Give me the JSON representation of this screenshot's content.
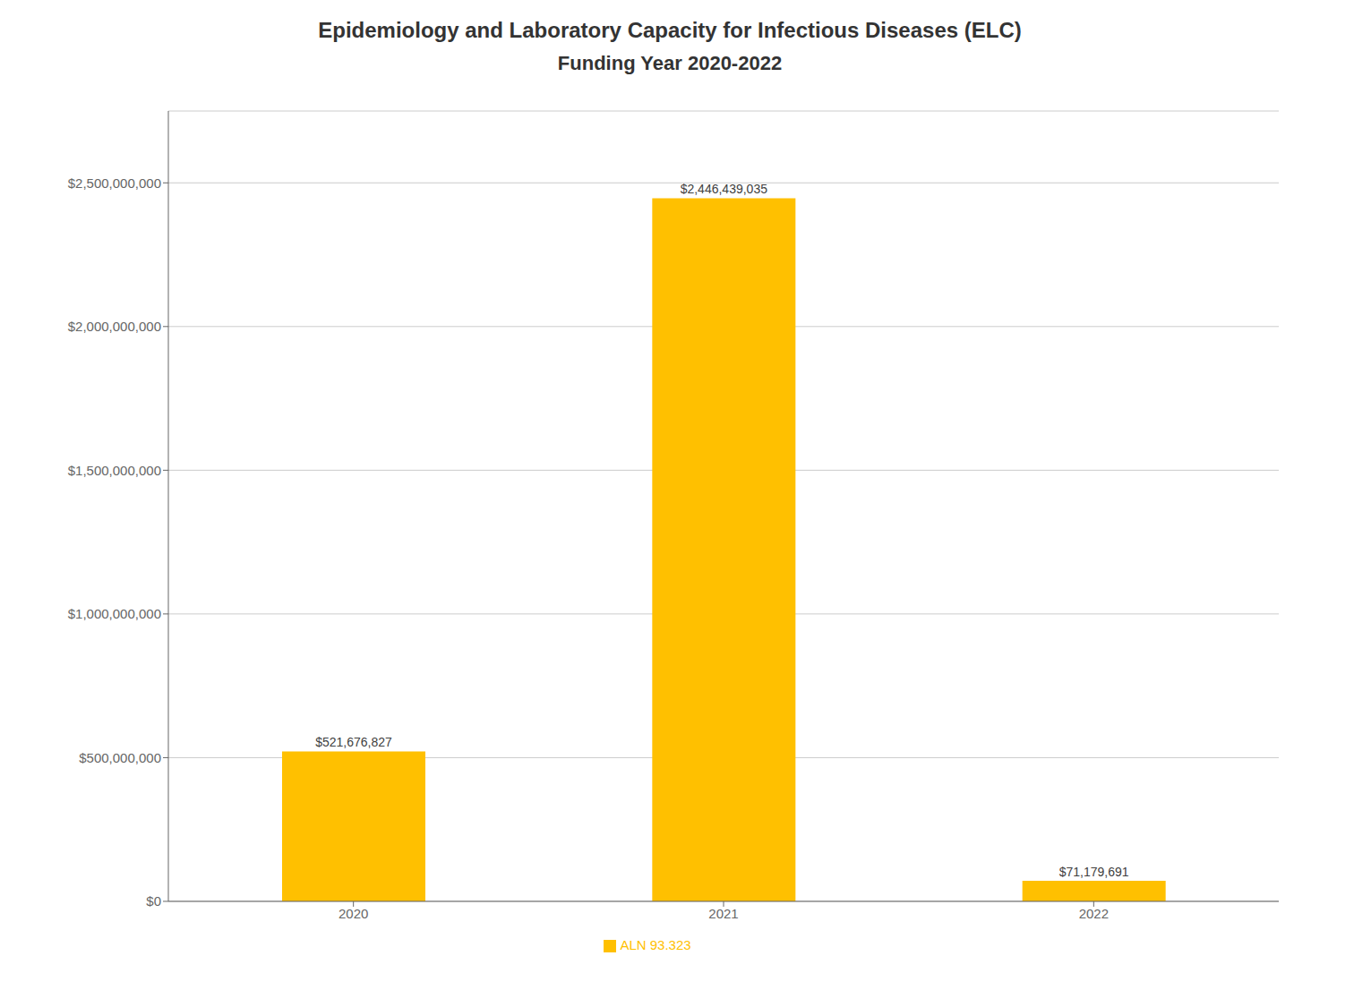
{
  "chart_data": {
    "type": "bar",
    "title": "Epidemiology and Laboratory Capacity for Infectious Diseases (ELC)",
    "subtitle": "Funding Year 2020-2022",
    "categories": [
      "2020",
      "2021",
      "2022"
    ],
    "series": [
      {
        "name": "ALN 93.323",
        "color": "#FFC000",
        "values": [
          521676827,
          2446439035,
          71179691
        ],
        "value_labels": [
          "$521,676,827",
          "$2,446,439,035",
          "$71,179,691"
        ]
      }
    ],
    "ylim": [
      0,
      2750000000
    ],
    "yticks": [
      {
        "value": 0,
        "label": "$0"
      },
      {
        "value": 500000000,
        "label": "$500,000,000"
      },
      {
        "value": 1000000000,
        "label": "$1,000,000,000"
      },
      {
        "value": 1500000000,
        "label": "$1,500,000,000"
      },
      {
        "value": 2000000000,
        "label": "$2,000,000,000"
      },
      {
        "value": 2500000000,
        "label": "$2,500,000,000"
      }
    ],
    "grid": true,
    "legend": "bottom",
    "data_labels": true
  }
}
